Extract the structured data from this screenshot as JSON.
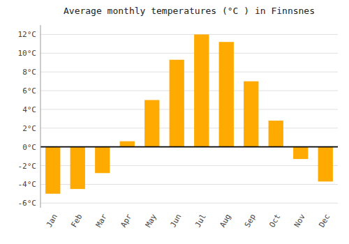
{
  "chart_data": {
    "type": "bar",
    "title": "Average monthly temperatures (°C ) in Finnsnes",
    "categories": [
      "Jan",
      "Feb",
      "Mar",
      "Apr",
      "May",
      "Jun",
      "Jul",
      "Aug",
      "Sep",
      "Oct",
      "Nov",
      "Dec"
    ],
    "values": [
      -5.0,
      -4.5,
      -2.8,
      0.6,
      5.0,
      9.3,
      12.0,
      11.2,
      7.0,
      2.8,
      -1.3,
      -3.7
    ],
    "color": "#FFAA00",
    "ylim": [
      -6.5,
      13.0
    ],
    "yticks": [
      {
        "value": -6,
        "label": "-6°C"
      },
      {
        "value": -4,
        "label": "-4°C"
      },
      {
        "value": -2,
        "label": "-2°C"
      },
      {
        "value": 0,
        "label": "0°C"
      },
      {
        "value": 2,
        "label": "2°C"
      },
      {
        "value": 4,
        "label": "4°C"
      },
      {
        "value": 6,
        "label": "6°C"
      },
      {
        "value": 8,
        "label": "8°C"
      },
      {
        "value": 10,
        "label": "10°C"
      },
      {
        "value": 12,
        "label": "12°C"
      }
    ],
    "grid": true
  }
}
